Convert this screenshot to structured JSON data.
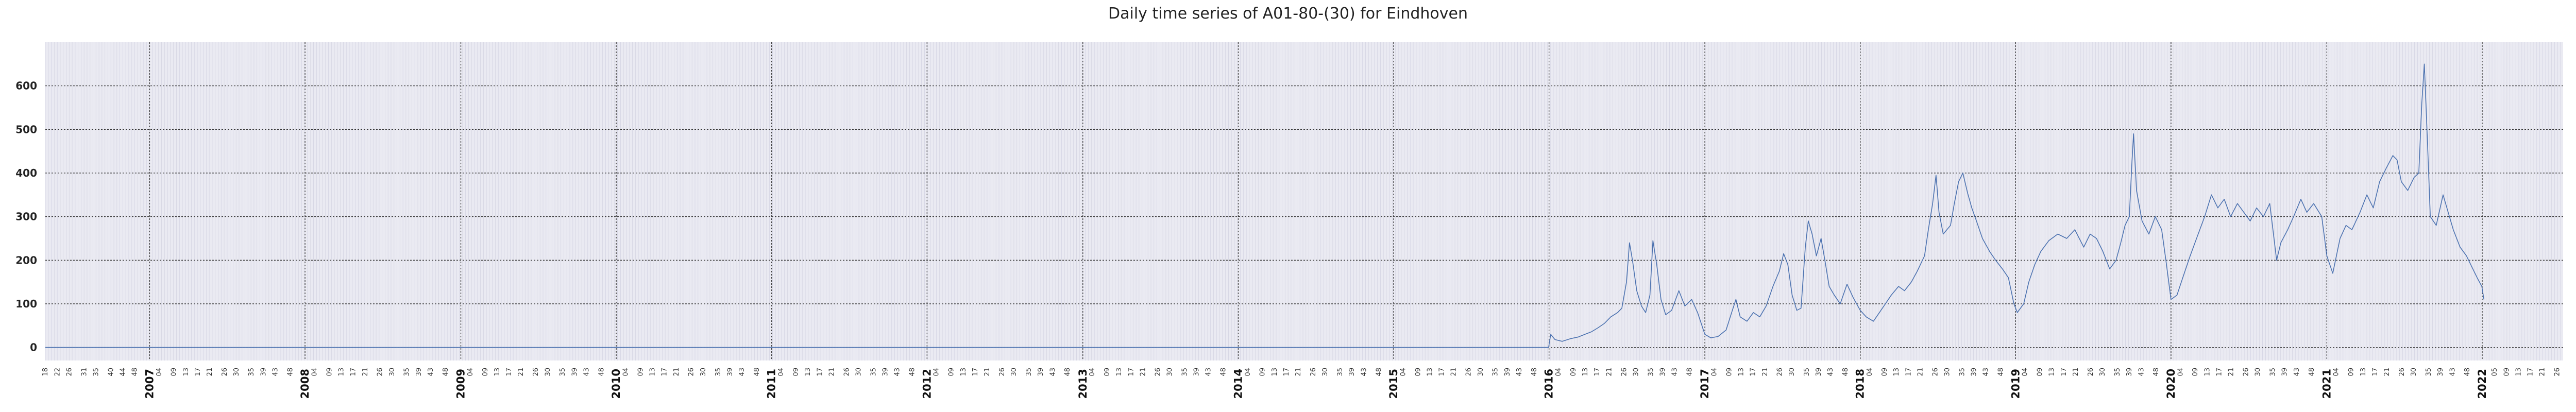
{
  "title": "Daily time series of A01-80-(30) for Eindhoven",
  "chart_data": {
    "type": "line",
    "title": "Daily time series of A01-80-(30) for Eindhoven",
    "x_range": [
      "2006-05-01",
      "2022-07-10"
    ],
    "ylim": [
      -30,
      700
    ],
    "yticks": [
      0,
      100,
      200,
      300,
      400,
      500,
      600
    ],
    "year_ticks": [
      "2007",
      "2008",
      "2009",
      "2010",
      "2011",
      "2012",
      "2013",
      "2014",
      "2015",
      "2016",
      "2017",
      "2018",
      "2019",
      "2020",
      "2021",
      "2022"
    ],
    "week_labels_first_partial_year": [
      "18",
      "22",
      "26",
      "31",
      "35",
      "40",
      "44",
      "48"
    ],
    "week_labels_per_year": [
      "04",
      "09",
      "13",
      "17",
      "21",
      "26",
      "30",
      "35",
      "39",
      "43",
      "48"
    ],
    "week_labels_last_partial_year": [
      "05",
      "09",
      "13",
      "17",
      "21",
      "26"
    ],
    "grid": true,
    "series": [
      {
        "color": "#4c72b0",
        "points": [
          [
            "2006-05-01",
            0
          ],
          [
            "2015-12-31",
            0
          ],
          [
            "2016-01-05",
            30
          ],
          [
            "2016-01-15",
            18
          ],
          [
            "2016-02-01",
            14
          ],
          [
            "2016-02-20",
            20
          ],
          [
            "2016-03-10",
            24
          ],
          [
            "2016-03-25",
            30
          ],
          [
            "2016-04-10",
            36
          ],
          [
            "2016-04-25",
            45
          ],
          [
            "2016-05-10",
            55
          ],
          [
            "2016-05-25",
            70
          ],
          [
            "2016-06-10",
            80
          ],
          [
            "2016-06-20",
            90
          ],
          [
            "2016-07-01",
            150
          ],
          [
            "2016-07-08",
            240
          ],
          [
            "2016-07-15",
            200
          ],
          [
            "2016-07-25",
            130
          ],
          [
            "2016-08-05",
            95
          ],
          [
            "2016-08-15",
            80
          ],
          [
            "2016-08-25",
            120
          ],
          [
            "2016-09-01",
            245
          ],
          [
            "2016-09-10",
            190
          ],
          [
            "2016-09-20",
            110
          ],
          [
            "2016-10-01",
            75
          ],
          [
            "2016-10-15",
            85
          ],
          [
            "2016-11-01",
            130
          ],
          [
            "2016-11-15",
            95
          ],
          [
            "2016-12-01",
            110
          ],
          [
            "2016-12-15",
            80
          ],
          [
            "2017-01-01",
            30
          ],
          [
            "2017-01-15",
            22
          ],
          [
            "2017-02-01",
            25
          ],
          [
            "2017-02-20",
            40
          ],
          [
            "2017-03-05",
            80
          ],
          [
            "2017-03-15",
            110
          ],
          [
            "2017-03-25",
            70
          ],
          [
            "2017-04-10",
            60
          ],
          [
            "2017-04-25",
            80
          ],
          [
            "2017-05-10",
            70
          ],
          [
            "2017-05-25",
            95
          ],
          [
            "2017-06-10",
            140
          ],
          [
            "2017-06-25",
            175
          ],
          [
            "2017-07-05",
            215
          ],
          [
            "2017-07-15",
            190
          ],
          [
            "2017-07-25",
            120
          ],
          [
            "2017-08-05",
            85
          ],
          [
            "2017-08-15",
            90
          ],
          [
            "2017-08-25",
            230
          ],
          [
            "2017-09-01",
            290
          ],
          [
            "2017-09-10",
            260
          ],
          [
            "2017-09-20",
            210
          ],
          [
            "2017-10-01",
            250
          ],
          [
            "2017-10-10",
            200
          ],
          [
            "2017-10-20",
            140
          ],
          [
            "2017-11-01",
            120
          ],
          [
            "2017-11-15",
            100
          ],
          [
            "2017-12-01",
            145
          ],
          [
            "2017-12-15",
            115
          ],
          [
            "2018-01-01",
            85
          ],
          [
            "2018-01-15",
            70
          ],
          [
            "2018-02-01",
            60
          ],
          [
            "2018-02-15",
            80
          ],
          [
            "2018-03-01",
            100
          ],
          [
            "2018-03-15",
            120
          ],
          [
            "2018-04-01",
            140
          ],
          [
            "2018-04-15",
            130
          ],
          [
            "2018-05-01",
            150
          ],
          [
            "2018-05-15",
            175
          ],
          [
            "2018-06-01",
            210
          ],
          [
            "2018-06-10",
            270
          ],
          [
            "2018-06-20",
            330
          ],
          [
            "2018-06-28",
            395
          ],
          [
            "2018-07-05",
            310
          ],
          [
            "2018-07-15",
            260
          ],
          [
            "2018-08-01",
            280
          ],
          [
            "2018-08-10",
            330
          ],
          [
            "2018-08-20",
            380
          ],
          [
            "2018-08-30",
            400
          ],
          [
            "2018-09-10",
            355
          ],
          [
            "2018-09-20",
            320
          ],
          [
            "2018-10-01",
            290
          ],
          [
            "2018-10-15",
            250
          ],
          [
            "2018-11-01",
            220
          ],
          [
            "2018-11-15",
            200
          ],
          [
            "2018-12-01",
            180
          ],
          [
            "2018-12-15",
            160
          ],
          [
            "2018-12-28",
            100
          ],
          [
            "2019-01-05",
            80
          ],
          [
            "2019-01-20",
            100
          ],
          [
            "2019-02-01",
            150
          ],
          [
            "2019-02-15",
            190
          ],
          [
            "2019-03-01",
            220
          ],
          [
            "2019-03-20",
            245
          ],
          [
            "2019-04-10",
            260
          ],
          [
            "2019-05-01",
            250
          ],
          [
            "2019-05-20",
            270
          ],
          [
            "2019-06-10",
            230
          ],
          [
            "2019-06-25",
            260
          ],
          [
            "2019-07-10",
            250
          ],
          [
            "2019-07-25",
            220
          ],
          [
            "2019-08-10",
            180
          ],
          [
            "2019-08-25",
            200
          ],
          [
            "2019-09-05",
            240
          ],
          [
            "2019-09-15",
            280
          ],
          [
            "2019-09-25",
            300
          ],
          [
            "2019-10-01",
            420
          ],
          [
            "2019-10-05",
            490
          ],
          [
            "2019-10-12",
            360
          ],
          [
            "2019-10-25",
            290
          ],
          [
            "2019-11-10",
            260
          ],
          [
            "2019-11-25",
            300
          ],
          [
            "2019-12-10",
            270
          ],
          [
            "2019-12-20",
            200
          ],
          [
            "2020-01-01",
            110
          ],
          [
            "2020-01-15",
            120
          ],
          [
            "2020-02-01",
            170
          ],
          [
            "2020-02-15",
            210
          ],
          [
            "2020-03-01",
            250
          ],
          [
            "2020-03-20",
            300
          ],
          [
            "2020-04-05",
            350
          ],
          [
            "2020-04-20",
            320
          ],
          [
            "2020-05-05",
            340
          ],
          [
            "2020-05-20",
            300
          ],
          [
            "2020-06-05",
            330
          ],
          [
            "2020-06-20",
            310
          ],
          [
            "2020-07-05",
            290
          ],
          [
            "2020-07-20",
            320
          ],
          [
            "2020-08-05",
            300
          ],
          [
            "2020-08-20",
            330
          ],
          [
            "2020-09-05",
            200
          ],
          [
            "2020-09-15",
            240
          ],
          [
            "2020-10-01",
            270
          ],
          [
            "2020-10-15",
            300
          ],
          [
            "2020-11-01",
            340
          ],
          [
            "2020-11-15",
            310
          ],
          [
            "2020-12-01",
            330
          ],
          [
            "2020-12-20",
            300
          ],
          [
            "2021-01-01",
            210
          ],
          [
            "2021-01-15",
            170
          ],
          [
            "2021-02-01",
            250
          ],
          [
            "2021-02-15",
            280
          ],
          [
            "2021-03-01",
            270
          ],
          [
            "2021-03-20",
            310
          ],
          [
            "2021-04-05",
            350
          ],
          [
            "2021-04-20",
            320
          ],
          [
            "2021-05-05",
            380
          ],
          [
            "2021-05-20",
            410
          ],
          [
            "2021-06-05",
            440
          ],
          [
            "2021-06-15",
            430
          ],
          [
            "2021-06-25",
            380
          ],
          [
            "2021-07-10",
            360
          ],
          [
            "2021-07-25",
            390
          ],
          [
            "2021-08-05",
            400
          ],
          [
            "2021-08-12",
            560
          ],
          [
            "2021-08-18",
            650
          ],
          [
            "2021-08-25",
            480
          ],
          [
            "2021-09-01",
            300
          ],
          [
            "2021-09-15",
            280
          ],
          [
            "2021-10-01",
            350
          ],
          [
            "2021-10-10",
            320
          ],
          [
            "2021-10-25",
            270
          ],
          [
            "2021-11-10",
            230
          ],
          [
            "2021-11-25",
            210
          ],
          [
            "2021-12-10",
            180
          ],
          [
            "2021-12-20",
            160
          ],
          [
            "2021-12-31",
            140
          ],
          [
            "2022-01-05",
            110
          ]
        ]
      }
    ]
  }
}
